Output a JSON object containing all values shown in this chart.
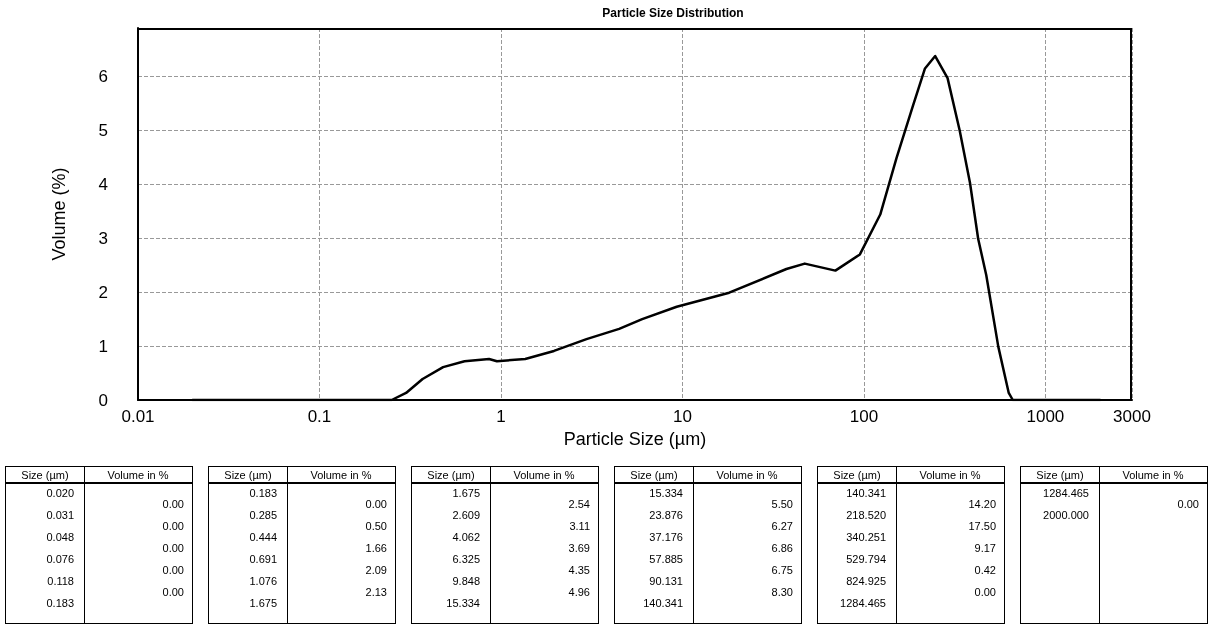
{
  "chart_data": [
    {
      "type": "line",
      "title": "Particle Size Distribution",
      "xlabel": "Particle Size (µm)",
      "ylabel": "Volume (%)",
      "log": "x",
      "grid": true,
      "marker": "none",
      "line_style": "solid",
      "xlim": [
        0.01,
        3000
      ],
      "xticks": [
        0.01,
        0.1,
        1,
        10,
        100,
        1000,
        3000
      ],
      "ylim": [
        0,
        6.9
      ],
      "yticks": [
        0,
        1,
        2,
        3,
        4,
        5,
        6
      ],
      "series": [
        {
          "color": "#000000",
          "x": [
            0.02,
            0.1,
            0.25,
            0.3,
            0.37,
            0.48,
            0.63,
            0.86,
            0.95,
            1.36,
            1.96,
            2.96,
            4.48,
            6,
            9.3,
            18.1,
            37.4,
            47.2,
            69.6,
            95,
            123,
            151,
            186,
            217,
            247,
            289,
            337,
            384,
            426,
            472,
            550,
            628,
            661,
            1000,
            2000
          ],
          "values": [
            0,
            0,
            0,
            0.13,
            0.39,
            0.61,
            0.72,
            0.76,
            0.72,
            0.76,
            0.91,
            1.13,
            1.32,
            1.5,
            1.73,
            1.99,
            2.43,
            2.53,
            2.4,
            2.7,
            3.44,
            4.48,
            5.45,
            6.15,
            6.38,
            5.97,
            5.0,
            4.03,
            2.99,
            2.32,
            0.99,
            0.13,
            0,
            0,
            0
          ]
        }
      ]
    },
    {
      "type": "other",
      "xlabel": "Size (µm)",
      "ylabel": "Volume in %",
      "categories": [
        "0.020",
        "0.031",
        "0.048",
        "0.076",
        "0.118",
        "0.183"
      ],
      "value_labels": [
        "0.00",
        "0.00",
        "0.00",
        "0.00",
        "0.00",
        null
      ]
    },
    {
      "type": "other",
      "xlabel": "Size (µm)",
      "ylabel": "Volume in %",
      "categories": [
        "0.183",
        "0.285",
        "0.444",
        "0.691",
        "1.076",
        "1.675"
      ],
      "value_labels": [
        "0.00",
        "0.50",
        "1.66",
        "2.09",
        "2.13",
        null
      ]
    },
    {
      "type": "other",
      "xlabel": "Size (µm)",
      "ylabel": "Volume in %",
      "categories": [
        "1.675",
        "2.609",
        "4.062",
        "6.325",
        "9.848",
        "15.334"
      ],
      "value_labels": [
        "2.54",
        "3.11",
        "3.69",
        "4.35",
        "4.96",
        null
      ]
    },
    {
      "type": "other",
      "xlabel": "Size (µm)",
      "ylabel": "Volume in %",
      "categories": [
        "15.334",
        "23.876",
        "37.176",
        "57.885",
        "90.131",
        "140.341"
      ],
      "value_labels": [
        "5.50",
        "6.27",
        "6.86",
        "6.75",
        "8.30",
        null
      ]
    },
    {
      "type": "other",
      "xlabel": "Size (µm)",
      "ylabel": "Volume in %",
      "categories": [
        "140.341",
        "218.520",
        "340.251",
        "529.794",
        "824.925",
        "1284.465"
      ],
      "value_labels": [
        "14.20",
        "17.50",
        "9.17",
        "0.42",
        "0.00",
        null
      ]
    },
    {
      "type": "other",
      "xlabel": "Size (µm)",
      "ylabel": "Volume in %",
      "categories": [
        "1284.465",
        "2000.000"
      ],
      "value_labels": [
        "0.00",
        null
      ]
    }
  ]
}
